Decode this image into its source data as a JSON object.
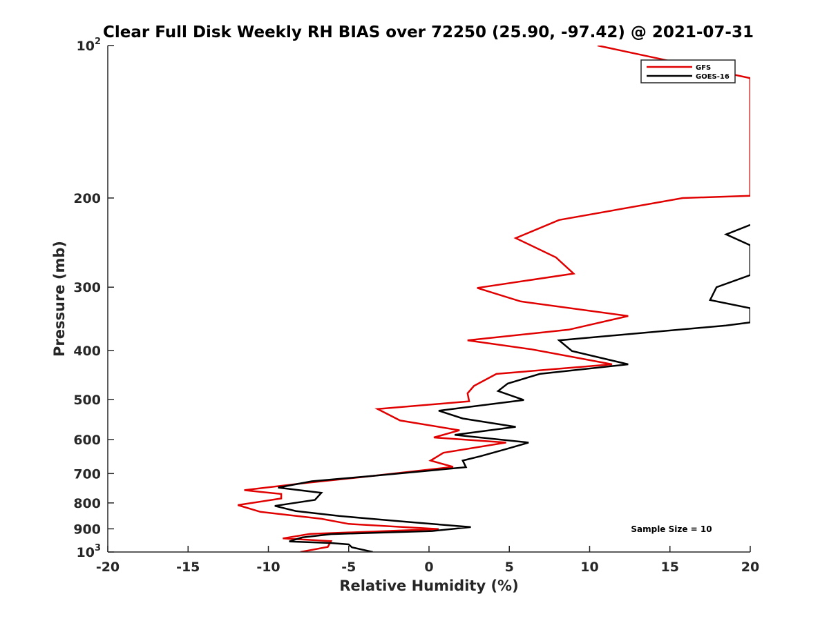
{
  "chart_data": {
    "type": "line",
    "title": "Clear Full Disk Weekly RH BIAS over 72250 (25.90, -97.42) @ 2021-07-31",
    "xlabel": "Relative Humidity (%)",
    "ylabel": "Pressure (mb)",
    "xlim": [
      -20,
      20
    ],
    "ylim": [
      100,
      1000
    ],
    "y_scale": "log",
    "y_reversed": true,
    "x_ticks": [
      "-20",
      "-15",
      "-10",
      "-5",
      "0",
      "5",
      "10",
      "15",
      "20"
    ],
    "y_ticks": [
      {
        "value": 100,
        "base": "10",
        "exp": "2"
      },
      {
        "value": 200,
        "label": "200"
      },
      {
        "value": 300,
        "label": "300"
      },
      {
        "value": 400,
        "label": "400"
      },
      {
        "value": 500,
        "label": "500"
      },
      {
        "value": 600,
        "label": "600"
      },
      {
        "value": 700,
        "label": "700"
      },
      {
        "value": 800,
        "label": "800"
      },
      {
        "value": 900,
        "label": "900"
      },
      {
        "value": 1000,
        "base": "10",
        "exp": "3"
      }
    ],
    "grid": false,
    "legend_position": "top-right",
    "annotation": "Sample Size = 10",
    "series": [
      {
        "name": "GFS",
        "color": "#e00000",
        "points": [
          [
            10.5,
            100
          ],
          [
            20.0,
            116
          ],
          [
            20.0,
            198
          ],
          [
            15.8,
            200
          ],
          [
            8.1,
            221
          ],
          [
            5.4,
            240
          ],
          [
            7.9,
            262
          ],
          [
            9.0,
            282
          ],
          [
            3.0,
            301
          ],
          [
            5.7,
            320
          ],
          [
            12.4,
            342
          ],
          [
            8.7,
            364
          ],
          [
            2.4,
            382
          ],
          [
            6.4,
            398
          ],
          [
            11.4,
            426
          ],
          [
            4.2,
            445
          ],
          [
            2.8,
            470
          ],
          [
            2.4,
            486
          ],
          [
            2.5,
            504
          ],
          [
            -3.2,
            522
          ],
          [
            -1.8,
            550
          ],
          [
            1.9,
            575
          ],
          [
            0.3,
            594
          ],
          [
            4.8,
            608
          ],
          [
            0.9,
            637
          ],
          [
            0.1,
            660
          ],
          [
            1.5,
            679
          ],
          [
            -4.1,
            711
          ],
          [
            -7.6,
            730
          ],
          [
            -11.5,
            755
          ],
          [
            -9.2,
            768
          ],
          [
            -9.2,
            784
          ],
          [
            -11.9,
            808
          ],
          [
            -10.5,
            833
          ],
          [
            -6.7,
            860
          ],
          [
            -5.0,
            880
          ],
          [
            0.6,
            901
          ],
          [
            -7.4,
            921
          ],
          [
            -9.1,
            940
          ],
          [
            -6.1,
            952
          ],
          [
            -6.3,
            977
          ],
          [
            -8.0,
            1000
          ]
        ]
      },
      {
        "name": "GOES-16",
        "color": "#000000",
        "points": [
          [
            20.0,
            226
          ],
          [
            18.5,
            236
          ],
          [
            20.0,
            248
          ],
          [
            20.0,
            284
          ],
          [
            17.9,
            300
          ],
          [
            17.5,
            318
          ],
          [
            20.0,
            330
          ],
          [
            20.0,
            352
          ],
          [
            18.5,
            357
          ],
          [
            8.1,
            382
          ],
          [
            8.9,
            401
          ],
          [
            12.4,
            426
          ],
          [
            6.9,
            445
          ],
          [
            4.9,
            465
          ],
          [
            4.3,
            481
          ],
          [
            5.9,
            501
          ],
          [
            0.6,
            526
          ],
          [
            2.1,
            545
          ],
          [
            5.4,
            566
          ],
          [
            1.6,
            587
          ],
          [
            6.2,
            608
          ],
          [
            4.9,
            625
          ],
          [
            3.2,
            647
          ],
          [
            2.1,
            660
          ],
          [
            2.3,
            680
          ],
          [
            -3.4,
            707
          ],
          [
            -7.3,
            725
          ],
          [
            -9.4,
            746
          ],
          [
            -6.7,
            764
          ],
          [
            -7.1,
            789
          ],
          [
            -9.6,
            811
          ],
          [
            -8.3,
            830
          ],
          [
            -5.6,
            849
          ],
          [
            -3.6,
            860
          ],
          [
            -1.4,
            872
          ],
          [
            2.6,
            893
          ],
          [
            0.2,
            909
          ],
          [
            -6.1,
            922
          ],
          [
            -7.9,
            936
          ],
          [
            -8.7,
            953
          ],
          [
            -6.1,
            960
          ],
          [
            -5.0,
            966
          ],
          [
            -4.8,
            979
          ],
          [
            -3.5,
            1000
          ]
        ]
      }
    ]
  }
}
